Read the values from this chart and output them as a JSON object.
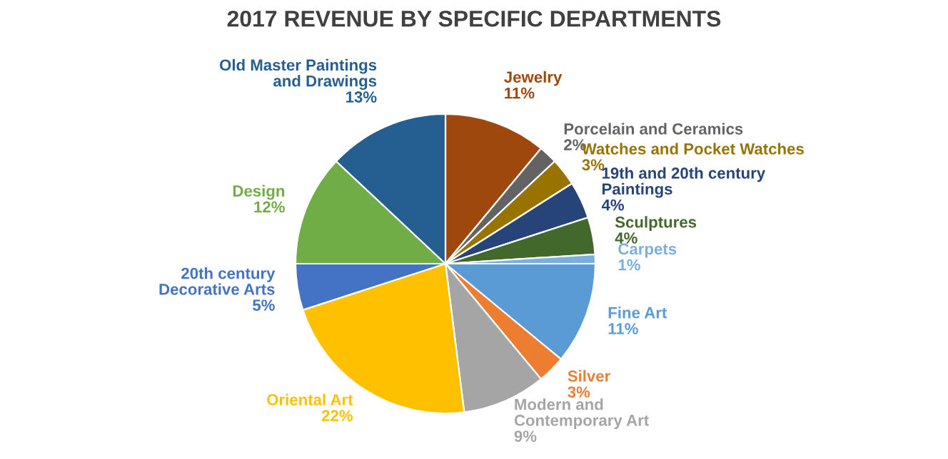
{
  "chart_data": {
    "type": "pie",
    "title": "2017 REVENUE BY SPECIFIC DEPARTMENTS",
    "categories": [
      "Jewelry",
      "Porcelain and Ceramics",
      "Watches and Pocket Watches",
      "19th and 20th century\nPaintings",
      "Sculptures",
      "Carpets",
      "Fine Art",
      "Silver",
      "Modern and\nContemporary Art",
      "Oriental Art",
      "20th century\nDecorative Arts",
      "Design",
      "Old Master Paintings\nand Drawings"
    ],
    "values": [
      11,
      2,
      3,
      4,
      4,
      1,
      11,
      3,
      9,
      22,
      5,
      12,
      13
    ],
    "value_labels": [
      "11%",
      "2%",
      "3%",
      "4%",
      "4%",
      "1%",
      "11%",
      "3%",
      "9%",
      "22%",
      "5%",
      "12%",
      "13%"
    ],
    "colors": [
      "#9e480e",
      "#636363",
      "#997300",
      "#264478",
      "#43682b",
      "#7cafdd",
      "#5b9bd5",
      "#ed7d31",
      "#a5a5a5",
      "#ffc000",
      "#4472c4",
      "#70ad47",
      "#255e91"
    ],
    "legend": false
  }
}
